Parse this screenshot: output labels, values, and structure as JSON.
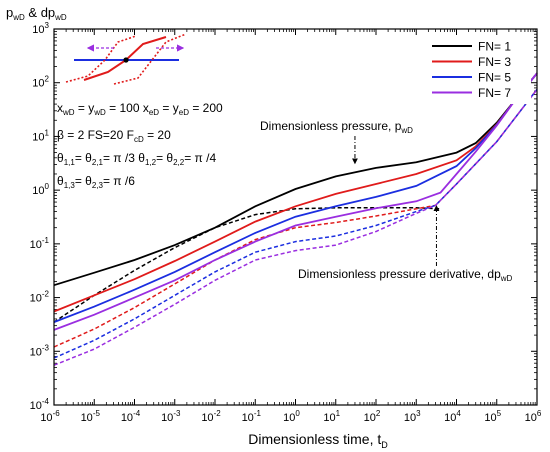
{
  "chart_data": {
    "type": "line",
    "x_scale": "log",
    "y_scale": "log",
    "xlim": [
      1e-06,
      1000000.0
    ],
    "ylim": [
      0.0001,
      1000.0
    ],
    "x_ticks": [
      1e-06,
      1e-05,
      0.0001,
      0.001,
      0.01,
      0.1,
      1.0,
      10.0,
      100.0,
      1000.0,
      10000.0,
      100000.0,
      1000000.0
    ],
    "y_ticks": [
      0.0001,
      0.001,
      0.01,
      0.1,
      1.0,
      10.0,
      100.0,
      1000.0
    ],
    "x_tick_labels": [
      {
        "base": "10",
        "exp": "-6"
      },
      {
        "base": "10",
        "exp": "-5"
      },
      {
        "base": "10",
        "exp": "-4"
      },
      {
        "base": "10",
        "exp": "-3"
      },
      {
        "base": "10",
        "exp": "-2"
      },
      {
        "base": "10",
        "exp": "-1"
      },
      {
        "base": "10",
        "exp": "0"
      },
      {
        "base": "10",
        "exp": "1"
      },
      {
        "base": "10",
        "exp": "2"
      },
      {
        "base": "10",
        "exp": "3"
      },
      {
        "base": "10",
        "exp": "4"
      },
      {
        "base": "10",
        "exp": "5"
      },
      {
        "base": "10",
        "exp": "6"
      }
    ],
    "y_tick_labels": [
      {
        "base": "10",
        "exp": "-4"
      },
      {
        "base": "10",
        "exp": "-3"
      },
      {
        "base": "10",
        "exp": "-2"
      },
      {
        "base": "10",
        "exp": "-1"
      },
      {
        "base": "10",
        "exp": "0"
      },
      {
        "base": "10",
        "exp": "1"
      },
      {
        "base": "10",
        "exp": "2"
      },
      {
        "base": "10",
        "exp": "3"
      }
    ],
    "xlabel": {
      "main": "Dimensionless time, t",
      "sub": "D"
    },
    "ylabel": {
      "p": "p",
      "p_sub": "wD",
      "mid": " & dp",
      "dp_sub": "wD"
    },
    "grid": false,
    "legend_position": "top-right",
    "series": [
      {
        "name": "FN= 1",
        "color": "#000000",
        "pressure": [
          [
            1e-06,
            0.017
          ],
          [
            1e-05,
            0.029
          ],
          [
            0.0001,
            0.05
          ],
          [
            0.001,
            0.095
          ],
          [
            0.01,
            0.2
          ],
          [
            0.1,
            0.5
          ],
          [
            1.0,
            1.05
          ],
          [
            10.0,
            1.8
          ],
          [
            100.0,
            2.6
          ],
          [
            1000.0,
            3.3
          ],
          [
            10000.0,
            5.0
          ],
          [
            30000.0,
            7.5
          ],
          [
            100000.0,
            18
          ],
          [
            300000.0,
            50
          ],
          [
            1000000.0,
            150
          ]
        ],
        "derivative": [
          [
            1e-06,
            0.0035
          ],
          [
            1e-05,
            0.011
          ],
          [
            0.0001,
            0.032
          ],
          [
            0.001,
            0.085
          ],
          [
            0.01,
            0.2
          ],
          [
            0.1,
            0.35
          ],
          [
            1.0,
            0.45
          ],
          [
            10.0,
            0.47
          ],
          [
            100.0,
            0.47
          ],
          [
            1000.0,
            0.47
          ],
          [
            4000.0,
            0.45
          ]
        ]
      },
      {
        "name": "FN= 3",
        "color": "#e01b1b",
        "pressure": [
          [
            1e-06,
            0.0055
          ],
          [
            1e-05,
            0.011
          ],
          [
            0.0001,
            0.022
          ],
          [
            0.001,
            0.048
          ],
          [
            0.01,
            0.11
          ],
          [
            0.1,
            0.26
          ],
          [
            1.0,
            0.5
          ],
          [
            10.0,
            0.85
          ],
          [
            100.0,
            1.3
          ],
          [
            1000.0,
            2.0
          ],
          [
            10000.0,
            3.6
          ],
          [
            30000.0,
            6.5
          ],
          [
            100000.0,
            17
          ],
          [
            300000.0,
            50
          ],
          [
            1000000.0,
            150
          ]
        ],
        "derivative": [
          [
            1e-06,
            0.0012
          ],
          [
            1e-05,
            0.0026
          ],
          [
            0.0001,
            0.0065
          ],
          [
            0.001,
            0.018
          ],
          [
            0.01,
            0.05
          ],
          [
            0.1,
            0.12
          ],
          [
            1.0,
            0.2
          ],
          [
            10.0,
            0.25
          ],
          [
            100.0,
            0.33
          ],
          [
            1000.0,
            0.45
          ],
          [
            3000.0,
            0.52
          ],
          [
            10000.0,
            1.3
          ],
          [
            100000.0,
            8
          ],
          [
            1000000.0,
            75
          ]
        ]
      },
      {
        "name": "FN= 5",
        "color": "#1b2ee0",
        "pressure": [
          [
            1e-06,
            0.0035
          ],
          [
            1e-05,
            0.0068
          ],
          [
            0.0001,
            0.014
          ],
          [
            0.001,
            0.03
          ],
          [
            0.01,
            0.07
          ],
          [
            0.1,
            0.16
          ],
          [
            1.0,
            0.32
          ],
          [
            10.0,
            0.5
          ],
          [
            100.0,
            0.75
          ],
          [
            1000.0,
            1.2
          ],
          [
            10000.0,
            2.8
          ],
          [
            30000.0,
            6.0
          ],
          [
            100000.0,
            16.5
          ],
          [
            300000.0,
            50
          ],
          [
            1000000.0,
            150
          ]
        ],
        "derivative": [
          [
            1e-06,
            0.00075
          ],
          [
            1e-05,
            0.0016
          ],
          [
            0.0001,
            0.004
          ],
          [
            0.001,
            0.011
          ],
          [
            0.01,
            0.03
          ],
          [
            0.1,
            0.07
          ],
          [
            1.0,
            0.11
          ],
          [
            10.0,
            0.14
          ],
          [
            100.0,
            0.22
          ],
          [
            1000.0,
            0.4
          ],
          [
            3000.0,
            0.52
          ],
          [
            10000.0,
            1.3
          ],
          [
            100000.0,
            8
          ],
          [
            1000000.0,
            75
          ]
        ]
      },
      {
        "name": "FN= 7",
        "color": "#9a2ee0",
        "pressure": [
          [
            1e-06,
            0.0025
          ],
          [
            1e-05,
            0.0048
          ],
          [
            0.0001,
            0.01
          ],
          [
            0.001,
            0.021
          ],
          [
            0.01,
            0.05
          ],
          [
            0.1,
            0.11
          ],
          [
            1.0,
            0.22
          ],
          [
            10.0,
            0.32
          ],
          [
            100.0,
            0.46
          ],
          [
            1000.0,
            0.62
          ],
          [
            4000.0,
            0.9
          ],
          [
            10000.0,
            2.0
          ],
          [
            30000.0,
            5.2
          ],
          [
            100000.0,
            16
          ],
          [
            300000.0,
            50
          ],
          [
            1000000.0,
            150
          ]
        ],
        "derivative": [
          [
            1e-06,
            0.00055
          ],
          [
            1e-05,
            0.0011
          ],
          [
            0.0001,
            0.0028
          ],
          [
            0.001,
            0.0075
          ],
          [
            0.01,
            0.021
          ],
          [
            0.1,
            0.05
          ],
          [
            1.0,
            0.075
          ],
          [
            10.0,
            0.095
          ],
          [
            100.0,
            0.17
          ],
          [
            1000.0,
            0.37
          ],
          [
            3000.0,
            0.52
          ],
          [
            10000.0,
            1.3
          ],
          [
            100000.0,
            8
          ],
          [
            1000000.0,
            75
          ]
        ]
      }
    ],
    "annotations": {
      "pressure": {
        "text": "Dimensionless pressure, p",
        "sub": "wD",
        "target": [
          30.0,
          2.9
        ]
      },
      "derivative": {
        "text": "Dimensionless pressure derivative, dp",
        "sub": "wD",
        "target": [
          3000.0,
          0.55
        ]
      }
    },
    "params": [
      [
        {
          "t": "x"
        },
        {
          "t": "wD",
          "sub": true
        },
        {
          "t": " = y"
        },
        {
          "t": "wD",
          "sub": true
        },
        {
          "t": " = 100   x"
        },
        {
          "t": "eD",
          "sub": true
        },
        {
          "t": " = y"
        },
        {
          "t": "eD",
          "sub": true
        },
        {
          "t": " = 200"
        }
      ],
      [
        {
          "t": "β = 2    FS=20    F"
        },
        {
          "t": "cD",
          "sub": true
        },
        {
          "t": " = 20"
        }
      ],
      [
        {
          "t": "θ"
        },
        {
          "t": "1,1",
          "sub": true
        },
        {
          "t": "= θ"
        },
        {
          "t": "2,1",
          "sub": true
        },
        {
          "t": "= π /3    θ"
        },
        {
          "t": "1,2",
          "sub": true
        },
        {
          "t": "= θ"
        },
        {
          "t": "2,2",
          "sub": true
        },
        {
          "t": "= π /4"
        }
      ],
      [
        {
          "t": "θ"
        },
        {
          "t": "1,3",
          "sub": true
        },
        {
          "t": "= θ"
        },
        {
          "t": "2,3",
          "sub": true
        },
        {
          "t": "= π /6"
        }
      ]
    ]
  }
}
